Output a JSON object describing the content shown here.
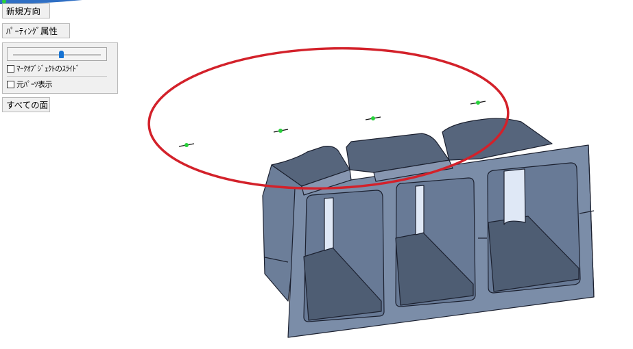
{
  "toolbar": {
    "new_direction_label": "新規方向",
    "parting_attr_label": "ﾊﾟｰﾃｨﾝｸﾞ属性",
    "all_faces_label": "すべての面"
  },
  "panel": {
    "slider_level": 0.55,
    "mark_slide_label": "ﾏｰｸｵﾌﾞｼﾞｪｸﾄのｽﾗｲﾄﾞ",
    "mark_slide_checked": false,
    "show_original_label": "元ﾊﾟｰﾂ表示",
    "show_original_checked": false
  },
  "colors": {
    "part_face": "#7b8da8",
    "part_top": "#56657c",
    "part_shadow": "#3e4a5c",
    "edge": "#1c2130",
    "highlight": "#e8f0ff",
    "annotation_ellipse": "#d3212a",
    "marker": "#27d13a",
    "accent_blue": "#1673d3"
  }
}
